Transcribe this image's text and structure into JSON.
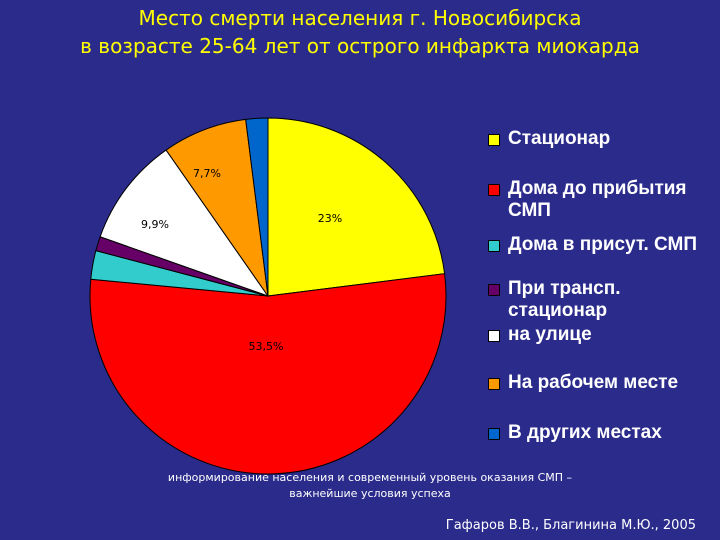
{
  "title": {
    "line1": "Место смерти населения г. Новосибирска",
    "line2": "в возрасте 25-64 лет от острого инфаркта миокарда"
  },
  "chart_data": {
    "type": "pie",
    "slices": [
      {
        "name": "Стационар",
        "value": 23,
        "label": "23%",
        "color": "#ffff00"
      },
      {
        "name": "Дома до прибытия СМП",
        "value": 53.5,
        "label": "53,5%",
        "color": "#ff0000"
      },
      {
        "name": "Дома в присут. СМП",
        "value": 2.6,
        "label": "",
        "color": "#33cccc"
      },
      {
        "name": "При трансп. стационар",
        "value": 1.3,
        "label": "",
        "color": "#660066"
      },
      {
        "name": "на улице",
        "value": 9.9,
        "label": "9,9%",
        "color": "#ffffff"
      },
      {
        "name": "На рабочем месте",
        "value": 7.7,
        "label": "7,7%",
        "color": "#ff9900"
      },
      {
        "name": "В других местах",
        "value": 2.0,
        "label": "",
        "color": "#0066cc"
      }
    ],
    "legend_position": "right"
  },
  "footer": {
    "line1": "информирование населения и современный уровень оказания СМП –",
    "line2": "важнейшие условия успеха"
  },
  "credit": "Гафаров В.В., Благинина М.Ю., 2005"
}
